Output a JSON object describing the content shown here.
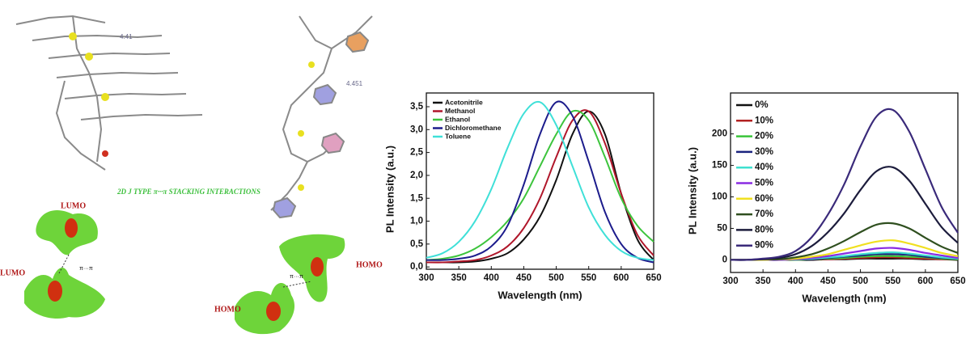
{
  "illustration": {
    "distances": [
      "4.41",
      "4.451"
    ],
    "caption": "2D J TYPE π···π STACKING INTERACTIONS",
    "orbitals": [
      "LUMO",
      "LUMO",
      "HOMO",
      "HOMO"
    ],
    "interactions": [
      "π···π",
      "π···π"
    ]
  },
  "chart_data": [
    {
      "type": "line",
      "xlabel": "Wavelength (nm)",
      "ylabel": "PL Intensity (a.u.)",
      "x": [
        300,
        325,
        350,
        375,
        400,
        425,
        450,
        475,
        500,
        525,
        550,
        575,
        600,
        625,
        650
      ],
      "xlim": [
        300,
        650
      ],
      "xticks": [
        300,
        350,
        400,
        450,
        500,
        550,
        600,
        650
      ],
      "ylim": [
        -0.05,
        3.8
      ],
      "yticks": [
        {
          "value": 0,
          "label": "0,0"
        },
        {
          "value": 0.5,
          "label": "0,5"
        },
        {
          "value": 1,
          "label": "1,0"
        },
        {
          "value": 1.5,
          "label": "1,5"
        },
        {
          "value": 2,
          "label": "2,0"
        },
        {
          "value": 2.5,
          "label": "2,5"
        },
        {
          "value": 3,
          "label": "3,0"
        },
        {
          "value": 3.5,
          "label": "3,5"
        }
      ],
      "legend": "upper left",
      "series": [
        {
          "name": "Acetonitrile",
          "color": "#111111",
          "values": [
            0.1,
            0.1,
            0.1,
            0.12,
            0.18,
            0.3,
            0.6,
            1.1,
            1.9,
            2.9,
            3.4,
            2.9,
            1.6,
            0.6,
            0.15
          ]
        },
        {
          "name": "Methanol",
          "color": "#b0162a",
          "values": [
            0.1,
            0.1,
            0.12,
            0.15,
            0.25,
            0.45,
            0.85,
            1.5,
            2.4,
            3.2,
            3.4,
            2.7,
            1.6,
            0.7,
            0.25
          ]
        },
        {
          "name": "Ethanol",
          "color": "#3cc43c",
          "values": [
            0.15,
            0.18,
            0.25,
            0.4,
            0.65,
            1.0,
            1.5,
            2.2,
            2.9,
            3.4,
            3.2,
            2.4,
            1.5,
            0.9,
            0.55
          ]
        },
        {
          "name": "Dichloromethane",
          "color": "#1c1c8c",
          "values": [
            0.15,
            0.15,
            0.18,
            0.25,
            0.45,
            0.9,
            1.8,
            2.9,
            3.6,
            3.3,
            2.3,
            1.2,
            0.5,
            0.2,
            0.1
          ]
        },
        {
          "name": "Toluene",
          "color": "#3fe0d8",
          "values": [
            0.2,
            0.3,
            0.55,
            1.0,
            1.7,
            2.6,
            3.35,
            3.6,
            3.1,
            2.2,
            1.3,
            0.7,
            0.35,
            0.2,
            0.15
          ]
        }
      ]
    },
    {
      "type": "line",
      "xlabel": "Wavelength (nm)",
      "ylabel": "PL Intensity (a.u.)",
      "x": [
        300,
        325,
        350,
        375,
        400,
        425,
        450,
        475,
        500,
        525,
        550,
        575,
        600,
        625,
        650
      ],
      "xlim": [
        300,
        650
      ],
      "xticks": [
        300,
        350,
        400,
        450,
        500,
        550,
        600,
        650
      ],
      "ylim": [
        -20,
        265
      ],
      "yticks": [
        0,
        50,
        100,
        150,
        200
      ],
      "legend": "upper left",
      "series": [
        {
          "name": "0%",
          "color": "#111111",
          "values": [
            0,
            0,
            0,
            0,
            0,
            0,
            1,
            1,
            2,
            2,
            2,
            2,
            1,
            1,
            0
          ]
        },
        {
          "name": "10%",
          "color": "#b22222",
          "values": [
            0,
            0,
            0,
            0,
            0,
            1,
            1,
            2,
            3,
            4,
            4,
            3,
            2,
            1,
            1
          ]
        },
        {
          "name": "20%",
          "color": "#3ac43a",
          "values": [
            0,
            0,
            0,
            0,
            0,
            1,
            2,
            3,
            5,
            6,
            6,
            5,
            4,
            2,
            1
          ]
        },
        {
          "name": "30%",
          "color": "#1a237e",
          "values": [
            0,
            0,
            0,
            0,
            1,
            1,
            3,
            5,
            7,
            9,
            9,
            8,
            5,
            3,
            2
          ]
        },
        {
          "name": "40%",
          "color": "#3fe0d0",
          "values": [
            0,
            0,
            0,
            0,
            1,
            2,
            4,
            6,
            9,
            11,
            12,
            10,
            7,
            4,
            2
          ]
        },
        {
          "name": "50%",
          "color": "#8a2be2",
          "values": [
            0,
            0,
            0,
            0,
            1,
            3,
            6,
            10,
            14,
            18,
            19,
            16,
            11,
            7,
            3
          ]
        },
        {
          "name": "60%",
          "color": "#f0e020",
          "values": [
            0,
            0,
            0,
            1,
            2,
            5,
            9,
            16,
            23,
            29,
            31,
            26,
            19,
            11,
            6
          ]
        },
        {
          "name": "70%",
          "color": "#2f4f1f",
          "values": [
            0,
            0,
            1,
            1,
            4,
            9,
            18,
            30,
            44,
            56,
            58,
            50,
            35,
            21,
            11
          ]
        },
        {
          "name": "80%",
          "color": "#1c1c3c",
          "values": [
            0,
            0,
            1,
            3,
            9,
            22,
            44,
            74,
            111,
            141,
            147,
            126,
            89,
            52,
            27
          ]
        },
        {
          "name": "90%",
          "color": "#3a2a7a",
          "values": [
            0,
            0,
            2,
            5,
            14,
            36,
            72,
            120,
            180,
            228,
            238,
            204,
            144,
            84,
            43
          ]
        }
      ]
    }
  ]
}
